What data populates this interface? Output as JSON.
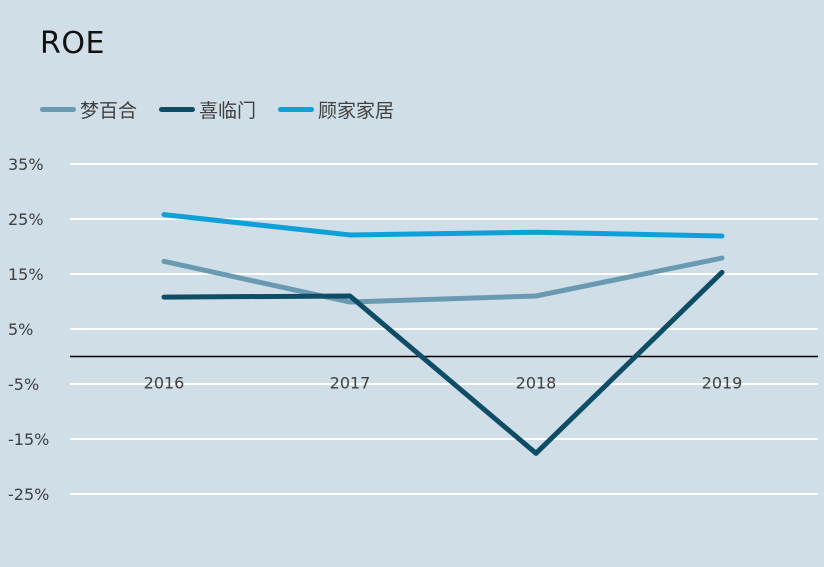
{
  "chart_data": {
    "type": "line",
    "title": "ROE",
    "xlabel": "",
    "ylabel": "",
    "categories": [
      "2016",
      "2017",
      "2018",
      "2019"
    ],
    "yticks": [
      "35%",
      "25%",
      "15%",
      "5%",
      "-5%",
      "-15%",
      "-25%"
    ],
    "ylim": [
      -25,
      35
    ],
    "grid": true,
    "legend_position": "top-left",
    "series": [
      {
        "name": "梦百合",
        "values": [
          17.3,
          9.9,
          11.0,
          17.9
        ],
        "color": "#6a9ab2"
      },
      {
        "name": "喜临门",
        "values": [
          10.8,
          11.0,
          -17.6,
          15.3
        ],
        "color": "#0f4d66"
      },
      {
        "name": "顾家家居",
        "values": [
          25.8,
          22.1,
          22.6,
          21.9
        ],
        "color": "#0ea0d8"
      }
    ]
  }
}
